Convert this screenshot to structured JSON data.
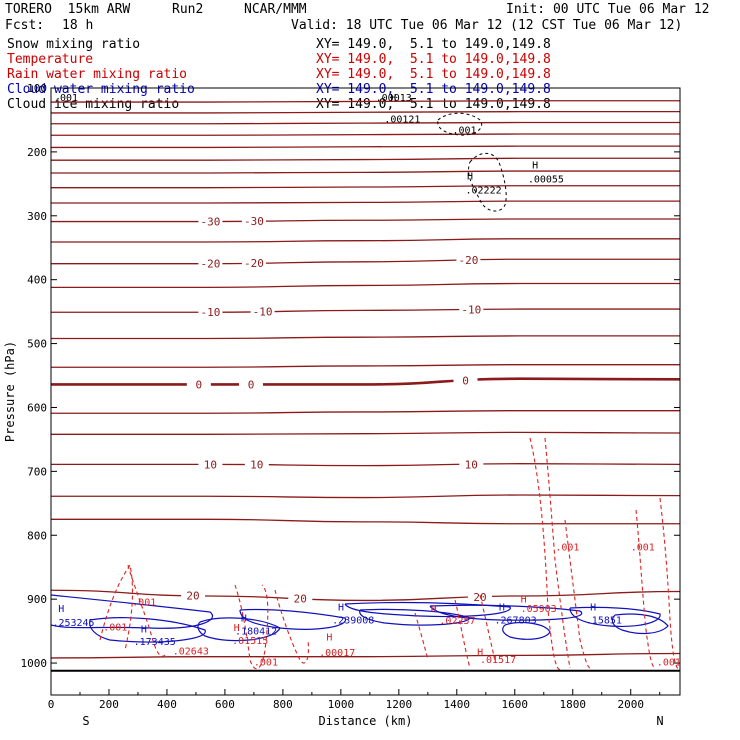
{
  "header": {
    "model": "TORERO  15km ARW",
    "run": "Run2",
    "org": "NCAR/MMM",
    "init": "Init: 00 UTC Tue 06 Mar 12",
    "fcst_label": "Fcst:",
    "fcst_value": "18 h",
    "valid": "Valid: 18 UTC Tue 06 Mar 12 (12 CST Tue 06 Mar 12)"
  },
  "legend": [
    {
      "name": "Snow mixing ratio",
      "xy": "XY= 149.0,  5.1 to 149.0,149.8",
      "color": "#000000"
    },
    {
      "name": "Temperature",
      "xy": "XY= 149.0,  5.1 to 149.0,149.8",
      "color": "#cc0000"
    },
    {
      "name": "Rain water mixing ratio",
      "xy": "XY= 149.0,  5.1 to 149.0,149.8",
      "color": "#cc0000"
    },
    {
      "name": "Cloud water mixing ratio",
      "xy": "XY= 149.0,  5.1 to 149.0,149.8",
      "color": "#0000bb"
    },
    {
      "name": "Cloud ice mixing ratio",
      "xy": "XY= 149.0,  5.1 to 149.0,149.8",
      "color": "#000000"
    }
  ],
  "chart_data": {
    "type": "contour",
    "xlabel": "Distance (km)",
    "ylabel": "Pressure (hPa)",
    "xlim": [
      0,
      2170
    ],
    "ylim": [
      1050,
      100
    ],
    "xticks": [
      0,
      200,
      400,
      600,
      800,
      1000,
      1200,
      1400,
      1600,
      1800,
      2000
    ],
    "yticks": [
      100,
      200,
      300,
      400,
      500,
      600,
      700,
      800,
      900,
      1000
    ],
    "left_end": "S",
    "right_end": "N",
    "colors": {
      "temperature": "#8b1a1a",
      "rain": "#dd2222",
      "cloud_water": "#1111bb",
      "snow": "#000000",
      "ground": "#000000"
    },
    "isotherms": [
      {
        "p": [
          122,
          122,
          121,
          120,
          120
        ],
        "label": ""
      },
      {
        "p": [
          139,
          139,
          138,
          137,
          137
        ],
        "label": ""
      },
      {
        "p": [
          156,
          156,
          155,
          154,
          154
        ],
        "label": ""
      },
      {
        "p": [
          174,
          174,
          173,
          172,
          172
        ],
        "label": ""
      },
      {
        "p": [
          193,
          193,
          192,
          191,
          191
        ],
        "label": ""
      },
      {
        "p": [
          213,
          213,
          212,
          210,
          210
        ],
        "label": ""
      },
      {
        "p": [
          233,
          233,
          232,
          230,
          230
        ],
        "label": ""
      },
      {
        "p": [
          256,
          256,
          255,
          253,
          253
        ],
        "label": ""
      },
      {
        "p": [
          280,
          280,
          279,
          277,
          277
        ],
        "label": ""
      },
      {
        "p": [
          309,
          309,
          307,
          305,
          305
        ],
        "label": "-30",
        "label_x": [
          550,
          700
        ]
      },
      {
        "p": [
          341,
          341,
          339,
          336,
          336
        ],
        "label": ""
      },
      {
        "p": [
          375,
          375,
          372,
          368,
          368
        ],
        "label": "-20",
        "label_x": [
          550,
          700,
          1440
        ]
      },
      {
        "p": [
          412,
          412,
          409,
          406,
          406
        ],
        "label": ""
      },
      {
        "p": [
          451,
          451,
          448,
          446,
          446
        ],
        "label": "-10",
        "label_x": [
          550,
          730,
          1450
        ]
      },
      {
        "p": [
          492,
          492,
          490,
          488,
          488
        ],
        "label": ""
      },
      {
        "p": [
          537,
          537,
          535,
          533,
          533
        ],
        "label": ""
      },
      {
        "p": [
          564,
          564,
          564,
          555,
          556
        ],
        "label": "0",
        "label_x": [
          510,
          690,
          1430
        ],
        "bold": true
      },
      {
        "p": [
          609,
          609,
          607,
          605,
          605
        ],
        "label": ""
      },
      {
        "p": [
          642,
          642,
          641,
          639,
          640
        ],
        "label": ""
      },
      {
        "p": [
          689,
          689,
          691,
          688,
          689
        ],
        "label": "10",
        "label_x": [
          550,
          710,
          1450
        ]
      },
      {
        "p": [
          739,
          739,
          741,
          737,
          738
        ],
        "label": ""
      },
      {
        "p": [
          775,
          775,
          779,
          782,
          782
        ],
        "label": ""
      },
      {
        "p": [
          886,
          895,
          902,
          895,
          888
        ],
        "label": "20",
        "label_x": [
          490,
          860,
          1480
        ]
      },
      {
        "p": [
          992,
          990,
          990,
          988,
          985
        ],
        "label": ""
      }
    ],
    "isotherm_x": [
      0,
      540,
      1080,
      1620,
      2170
    ],
    "ground_p": 1012,
    "rain_labels": [
      {
        "text": ".001",
        "x": 280,
        "p": 910
      },
      {
        "text": ".001",
        "x": 180,
        "p": 949
      },
      {
        "text": ".02643",
        "x": 420,
        "p": 987
      },
      {
        "text": ".01515",
        "x": 625,
        "p": 970
      },
      {
        "text": ".001",
        "x": 700,
        "p": 1004
      },
      {
        "text": ".00017",
        "x": 925,
        "p": 989
      },
      {
        "text": ".02257",
        "x": 1340,
        "p": 939
      },
      {
        "text": ".05903",
        "x": 1620,
        "p": 920
      },
      {
        "text": ".01517",
        "x": 1480,
        "p": 1000
      },
      {
        "text": ".001",
        "x": 1740,
        "p": 824
      },
      {
        "text": ".001",
        "x": 2000,
        "p": 824
      },
      {
        "text": ".001",
        "x": 2090,
        "p": 1004
      }
    ],
    "rain_H": [
      {
        "x": 630,
        "p": 950
      },
      {
        "x": 950,
        "p": 965
      },
      {
        "x": 1310,
        "p": 920
      },
      {
        "x": 1620,
        "p": 905
      },
      {
        "x": 1470,
        "p": 988
      }
    ],
    "cloud_water_labels": [
      {
        "text": ".253245",
        "x": 5,
        "p": 942
      },
      {
        "text": ".173435",
        "x": 285,
        "p": 972
      },
      {
        "text": ".180412",
        "x": 635,
        "p": 955
      },
      {
        "text": ".239008",
        "x": 970,
        "p": 938
      },
      {
        "text": ".267803",
        "x": 1530,
        "p": 938
      },
      {
        "text": ".15851",
        "x": 1845,
        "p": 938
      }
    ],
    "cloud_water_H": [
      {
        "x": 25,
        "p": 920
      },
      {
        "x": 310,
        "p": 952
      },
      {
        "x": 655,
        "p": 935
      },
      {
        "x": 990,
        "p": 918
      },
      {
        "x": 1545,
        "p": 918
      },
      {
        "x": 1860,
        "p": 918
      }
    ],
    "snow_labels": [
      {
        "text": ".00121",
        "x": 1150,
        "p": 154
      },
      {
        "text": ".001",
        "x": 1385,
        "p": 171
      },
      {
        "text": ".02222",
        "x": 1430,
        "p": 265
      },
      {
        "text": ".00055",
        "x": 1645,
        "p": 248
      },
      {
        "text": ".00013",
        "x": 1120,
        "p": 120
      }
    ],
    "snow_H": [
      {
        "x": 1435,
        "p": 243
      },
      {
        "x": 1660,
        "p": 226
      }
    ],
    "overlap_labels": [
      {
        "text": ".001",
        "x": 0,
        "p": 120
      },
      {
        "text": "H",
        "x": 1160,
        "p": 120
      }
    ]
  }
}
